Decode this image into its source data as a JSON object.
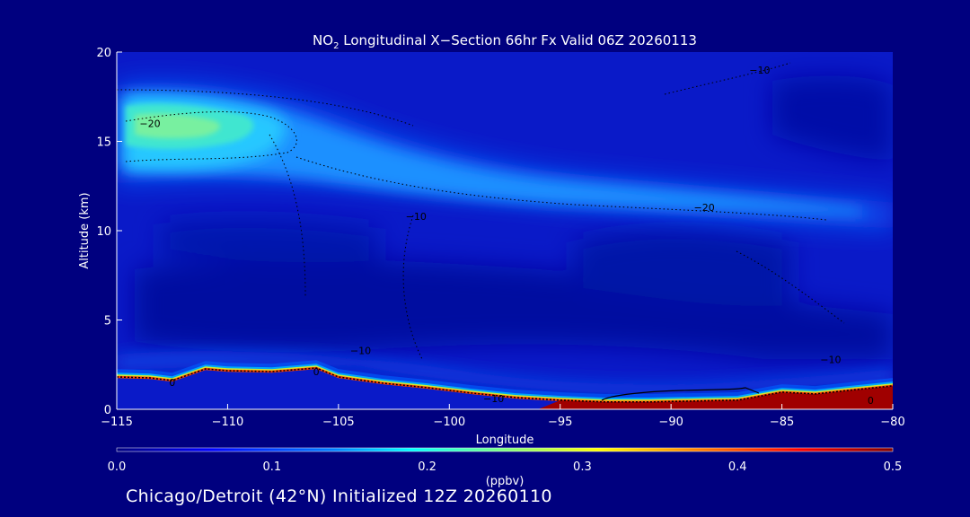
{
  "chart_data": {
    "type": "heatmap",
    "title": {
      "species": "NO",
      "subscript": "2",
      "rest": " Longitudinal X−Section 66hr  Fx Valid 06Z 20260113"
    },
    "xlabel": "Longitude",
    "ylabel": "Altitude (km)",
    "xlim": [
      -115,
      -80
    ],
    "ylim": [
      0,
      20
    ],
    "x_ticks": [
      -115,
      -110,
      -105,
      -100,
      -95,
      -90,
      -85,
      -80
    ],
    "x_tick_labels": [
      "−115",
      "−110",
      "−105",
      "−100",
      "−95",
      "−90",
      "−85",
      "−80"
    ],
    "y_ticks": [
      0,
      5,
      10,
      15,
      20
    ],
    "y_tick_labels": [
      "0",
      "5",
      "10",
      "15",
      "20"
    ],
    "colorbar": {
      "label": "(ppbv)",
      "min": 0.0,
      "max": 0.5,
      "ticks": [
        0.0,
        0.1,
        0.2,
        0.3,
        0.4,
        0.5
      ],
      "tick_labels": [
        "0.0",
        "0.1",
        "0.2",
        "0.3",
        "0.4",
        "0.5"
      ],
      "colormap": [
        "#00007f",
        "#0000ff",
        "#0080ff",
        "#00ffff",
        "#80ff80",
        "#ffff00",
        "#ff8000",
        "#ff0000",
        "#7f0000"
      ]
    },
    "terrain_km": [
      [
        -115,
        1.75
      ],
      [
        -113.5,
        1.7
      ],
      [
        -112.5,
        1.55
      ],
      [
        -111,
        2.2
      ],
      [
        -110,
        2.1
      ],
      [
        -108,
        2.05
      ],
      [
        -106,
        2.25
      ],
      [
        -105,
        1.75
      ],
      [
        -103,
        1.4
      ],
      [
        -101,
        1.15
      ],
      [
        -99,
        0.85
      ],
      [
        -97,
        0.6
      ],
      [
        -95,
        0.45
      ],
      [
        -93,
        0.35
      ],
      [
        -91,
        0.35
      ],
      [
        -89,
        0.4
      ],
      [
        -87,
        0.45
      ],
      [
        -85,
        0.9
      ],
      [
        -83.5,
        0.8
      ],
      [
        -82,
        1.0
      ],
      [
        -80,
        1.25
      ]
    ],
    "plumes": [
      {
        "lon": -113,
        "alt_km": 16.2,
        "value": 0.2
      },
      {
        "lon": -110,
        "alt_km": 15.0,
        "value": 0.15
      },
      {
        "lon": -100,
        "alt_km": 11.8,
        "value": 0.12
      },
      {
        "lon": -90,
        "alt_km": 11.5,
        "value": 0.11
      },
      {
        "lon": -82,
        "alt_km": 10.8,
        "value": 0.1
      }
    ],
    "surface_layer": [
      {
        "lon": -115,
        "value": 0.05
      },
      {
        "lon": -100,
        "value": 0.3
      },
      {
        "lon": -92,
        "value": 0.5
      },
      {
        "lon": -84,
        "value": 0.3
      },
      {
        "lon": -81,
        "value": 0.5
      }
    ],
    "contour_labels": [
      {
        "lon": -113.5,
        "alt_km": 16.0,
        "text": "−20"
      },
      {
        "lon": -88.5,
        "alt_km": 11.3,
        "text": "−20"
      },
      {
        "lon": -101.5,
        "alt_km": 10.8,
        "text": "−10"
      },
      {
        "lon": -86,
        "alt_km": 19.0,
        "text": "−10"
      },
      {
        "lon": -98,
        "alt_km": 0.6,
        "text": "−10"
      },
      {
        "lon": -104,
        "alt_km": 3.3,
        "text": "−10"
      },
      {
        "lon": -106,
        "alt_km": 2.1,
        "text": "0"
      },
      {
        "lon": -112.5,
        "alt_km": 1.5,
        "text": "0"
      },
      {
        "lon": -82.8,
        "alt_km": 2.8,
        "text": "−10"
      },
      {
        "lon": -81,
        "alt_km": 0.5,
        "text": "0"
      }
    ]
  },
  "footer": "Chicago/Detroit (42°N) Initialized 12Z 20260110"
}
